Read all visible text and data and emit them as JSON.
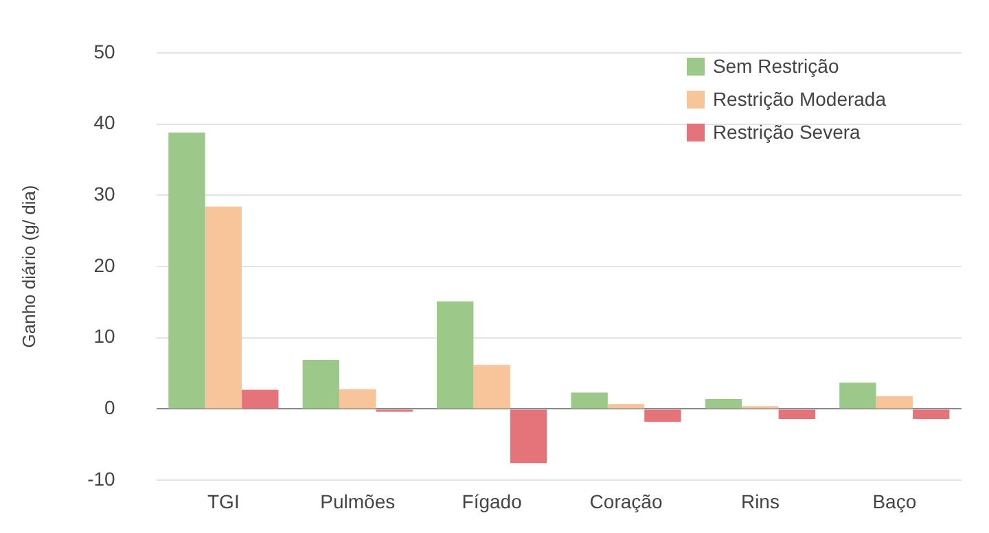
{
  "chart_data": {
    "type": "bar",
    "ylabel": "Ganho diário (g/ dia)",
    "categories": [
      "TGI",
      "Pulmões",
      "Fígado",
      "Coração",
      "Rins",
      "Baço"
    ],
    "series": [
      {
        "name": "Sem Restrição",
        "color": "#9cc98a",
        "values": [
          38.8,
          6.9,
          15.1,
          2.3,
          1.4,
          3.7
        ]
      },
      {
        "name": "Restrição Moderada",
        "color": "#f8c49a",
        "values": [
          28.4,
          2.8,
          6.2,
          0.7,
          0.4,
          1.8
        ]
      },
      {
        "name": "Restrição Severa",
        "color": "#e4747a",
        "values": [
          2.7,
          -0.4,
          -7.6,
          -1.8,
          -1.4,
          -1.4
        ]
      }
    ],
    "ylim": [
      -10,
      50
    ],
    "yticks": [
      -10,
      0,
      10,
      20,
      30,
      40,
      50
    ],
    "grid": "y",
    "legend": "top right"
  }
}
